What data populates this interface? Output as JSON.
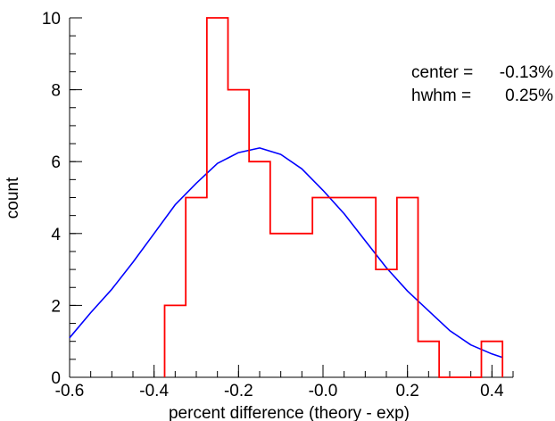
{
  "chart_data": {
    "type": "histogram",
    "xlabel": "percent difference (theory - exp)",
    "ylabel": "count",
    "xlim": [
      -0.6,
      0.45
    ],
    "ylim": [
      0,
      10
    ],
    "x_ticks": [
      -0.6,
      -0.4,
      -0.2,
      0.0,
      0.2,
      0.4
    ],
    "x_tick_labels": [
      "-0.6",
      "-0.4",
      "-0.2",
      "-0.0",
      "0.2",
      "0.4"
    ],
    "x_minor_step": 0.05,
    "y_ticks": [
      0,
      2,
      4,
      6,
      8,
      10
    ],
    "y_tick_labels": [
      "0",
      "2",
      "4",
      "6",
      "8",
      "10"
    ],
    "y_minor_step": 0.5,
    "grid": false,
    "histogram": {
      "color": "#ff0000",
      "bin_width": 0.05,
      "bins": [
        {
          "x0": -0.375,
          "count": 2
        },
        {
          "x0": -0.325,
          "count": 5
        },
        {
          "x0": -0.275,
          "count": 10
        },
        {
          "x0": -0.225,
          "count": 8
        },
        {
          "x0": -0.175,
          "count": 6
        },
        {
          "x0": -0.125,
          "count": 4
        },
        {
          "x0": -0.075,
          "count": 4
        },
        {
          "x0": -0.025,
          "count": 5
        },
        {
          "x0": 0.025,
          "count": 5
        },
        {
          "x0": 0.075,
          "count": 5
        },
        {
          "x0": 0.125,
          "count": 3
        },
        {
          "x0": 0.175,
          "count": 5
        },
        {
          "x0": 0.225,
          "count": 1
        },
        {
          "x0": 0.275,
          "count": 0
        },
        {
          "x0": 0.325,
          "count": 0
        },
        {
          "x0": 0.375,
          "count": 1
        }
      ]
    },
    "fit_curve": {
      "color": "#0000ff",
      "x": [
        -0.6,
        -0.55,
        -0.5,
        -0.45,
        -0.4,
        -0.35,
        -0.3,
        -0.25,
        -0.2,
        -0.15,
        -0.1,
        -0.05,
        0.0,
        0.05,
        0.1,
        0.15,
        0.2,
        0.25,
        0.3,
        0.35,
        0.4,
        0.425
      ],
      "y": [
        1.1,
        1.8,
        2.45,
        3.2,
        4.0,
        4.8,
        5.4,
        5.95,
        6.25,
        6.38,
        6.2,
        5.8,
        5.2,
        4.55,
        3.8,
        3.05,
        2.4,
        1.85,
        1.3,
        0.9,
        0.65,
        0.55
      ]
    },
    "annotations": [
      {
        "label": "center =",
        "value": "-0.13%"
      },
      {
        "label": "hwhm =",
        "value": "0.25%"
      }
    ]
  }
}
